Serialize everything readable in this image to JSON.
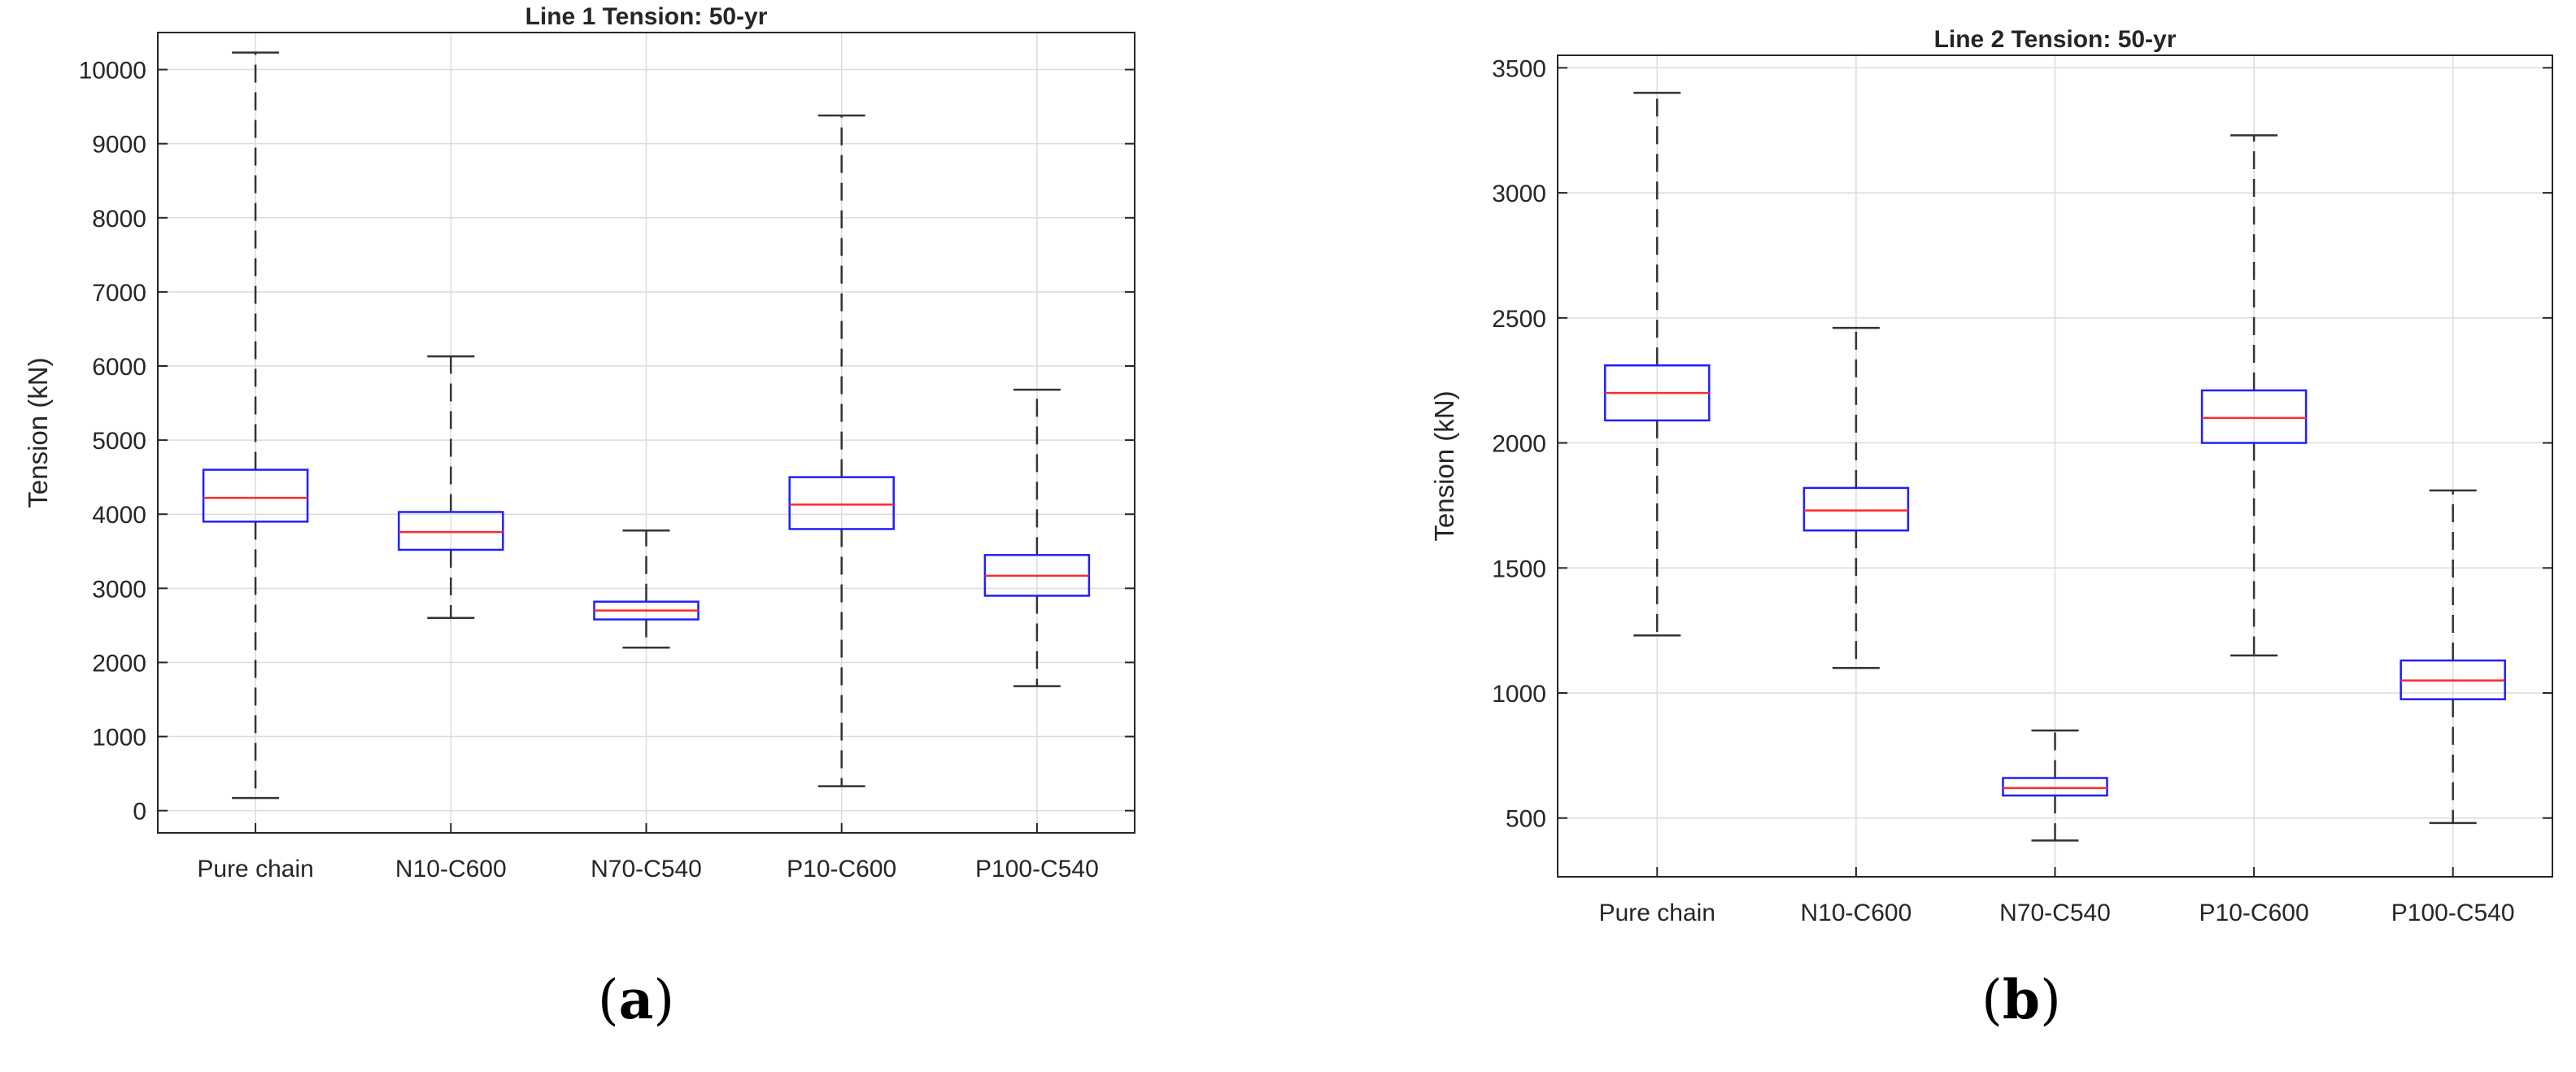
{
  "figure_labels": {
    "a": {
      "open": "(",
      "letter": "a",
      "close": ")"
    },
    "b": {
      "open": "(",
      "letter": "b",
      "close": ")"
    }
  },
  "colors": {
    "box": "#1f1fff",
    "median": "#ff2a2a",
    "whisker": "#333333",
    "grid": "#dcdcdc",
    "axis": "#262626"
  },
  "chart_data": [
    {
      "type": "boxplot",
      "title": "Line 1 Tension: 50-yr",
      "xlabel": "",
      "ylabel": "Tension (kN)",
      "ylim": [
        -300,
        10500
      ],
      "yticks": [
        0,
        1000,
        2000,
        3000,
        4000,
        5000,
        6000,
        7000,
        8000,
        9000,
        10000
      ],
      "grid": true,
      "categories": [
        "Pure chain",
        "N10-C600",
        "N70-C540",
        "P10-C600",
        "P100-C540"
      ],
      "boxes": [
        {
          "min": 170,
          "q1": 3900,
          "median": 4220,
          "q3": 4600,
          "max": 10230
        },
        {
          "min": 2600,
          "q1": 3520,
          "median": 3760,
          "q3": 4030,
          "max": 6130
        },
        {
          "min": 2200,
          "q1": 2580,
          "median": 2700,
          "q3": 2820,
          "max": 3780
        },
        {
          "min": 330,
          "q1": 3800,
          "median": 4130,
          "q3": 4500,
          "max": 9380
        },
        {
          "min": 1680,
          "q1": 2900,
          "median": 3170,
          "q3": 3450,
          "max": 5680
        }
      ]
    },
    {
      "type": "boxplot",
      "title": "Line 2 Tension: 50-yr",
      "xlabel": "",
      "ylabel": "Tension (kN)",
      "ylim": [
        265,
        3550
      ],
      "yticks": [
        500,
        1000,
        1500,
        2000,
        2500,
        3000,
        3500
      ],
      "grid": true,
      "categories": [
        "Pure chain",
        "N10-C600",
        "N70-C540",
        "P10-C600",
        "P100-C540"
      ],
      "boxes": [
        {
          "min": 1230,
          "q1": 2090,
          "median": 2200,
          "q3": 2310,
          "max": 3400
        },
        {
          "min": 1100,
          "q1": 1650,
          "median": 1730,
          "q3": 1820,
          "max": 2460
        },
        {
          "min": 410,
          "q1": 590,
          "median": 620,
          "q3": 660,
          "max": 850
        },
        {
          "min": 1150,
          "q1": 2000,
          "median": 2100,
          "q3": 2210,
          "max": 3230
        },
        {
          "min": 480,
          "q1": 975,
          "median": 1050,
          "q3": 1130,
          "max": 1810
        }
      ]
    }
  ]
}
